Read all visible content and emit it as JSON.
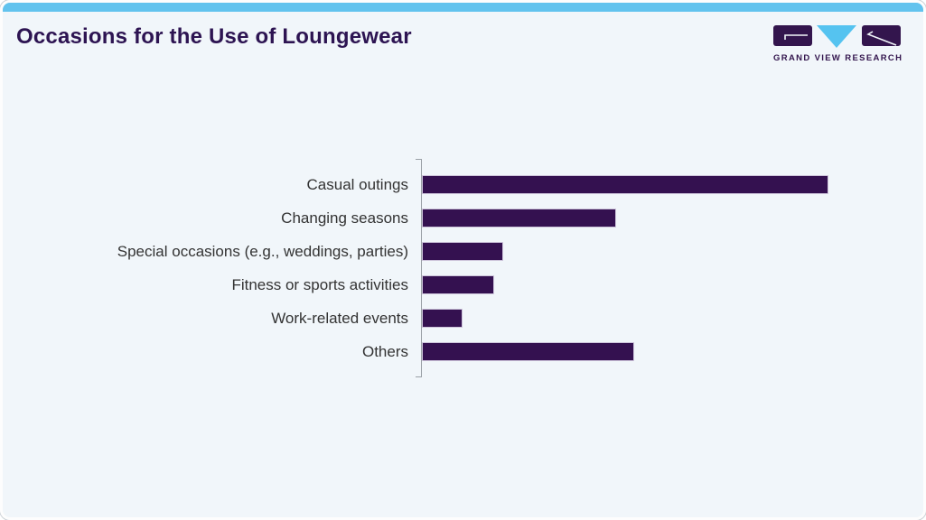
{
  "header": {
    "title": "Occasions for the Use of Loungewear"
  },
  "logo": {
    "text": "GRAND VIEW RESEARCH",
    "icon": "gvr-logo-mark: purple rounded square, cyan down triangle, purple rounded square"
  },
  "colors": {
    "accent_strip": "#62c3ee",
    "title_text": "#2d1452",
    "bar": "#341150",
    "background": "#f1f6fa",
    "logo_purple": "#33154d",
    "logo_cyan": "#55c3f0",
    "axis_line": "#9aa0a6",
    "label_text": "#333333"
  },
  "chart_data": {
    "type": "bar",
    "orientation": "horizontal",
    "title": "Occasions for the Use of Loungewear",
    "categories": [
      "Casual outings",
      "Changing seasons",
      "Special occasions (e.g., weddings, parties)",
      "Fitness or sports activities",
      "Work-related events",
      "Others"
    ],
    "values": [
      45,
      21.5,
      9,
      8,
      4.5,
      23.5
    ],
    "value_note": "no numeric axis or data labels are shown in the image; values estimated from relative bar lengths with longest bar set to 45",
    "xlabel": "",
    "ylabel": "",
    "xlim": [
      0,
      50
    ],
    "grid": false,
    "legend": "none",
    "bar_color": "#341150",
    "axis_style": "left bracket only, no ticks or tick labels"
  }
}
